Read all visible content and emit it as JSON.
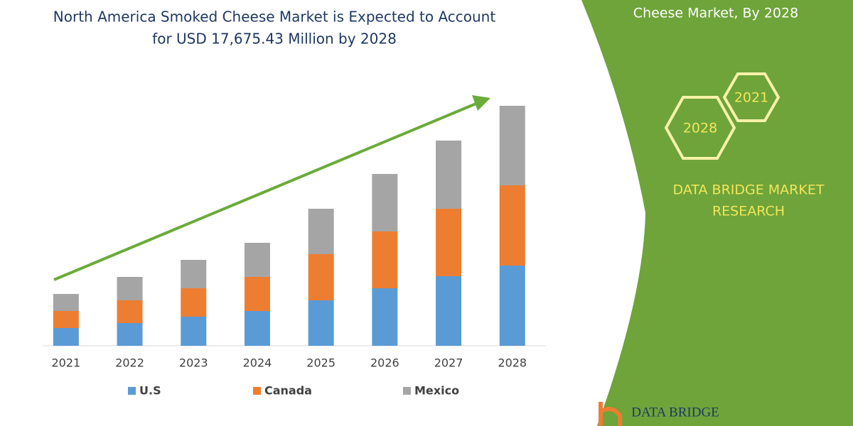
{
  "chart_data": {
    "type": "stacked-bar",
    "title": [
      "North America Smoked Cheese Market is Expected to Account",
      "for USD 17,675.43 Million by 2028"
    ],
    "categories": [
      "2021",
      "2022",
      "2023",
      "2024",
      "2025",
      "2026",
      "2027",
      "2028"
    ],
    "series": [
      {
        "name": "U.S",
        "color": "#5b9bd5",
        "values": [
          25,
          32,
          41,
          49,
          64,
          81,
          98,
          113
        ]
      },
      {
        "name": "Canada",
        "color": "#ed7d31",
        "values": [
          24,
          32,
          40,
          48,
          65,
          80,
          95,
          113
        ]
      },
      {
        "name": "Mexico",
        "color": "#a5a5a5",
        "values": [
          24,
          33,
          40,
          48,
          64,
          81,
          96,
          112
        ]
      }
    ],
    "ylim": [
      0,
      350
    ]
  },
  "panel": {
    "heading": "Cheese Market, By 2028",
    "hexagons": [
      "2021",
      "2028"
    ],
    "brand": [
      "DATA BRIDGE MARKET",
      "RESEARCH"
    ],
    "logo": "DATA BRIDGE"
  }
}
